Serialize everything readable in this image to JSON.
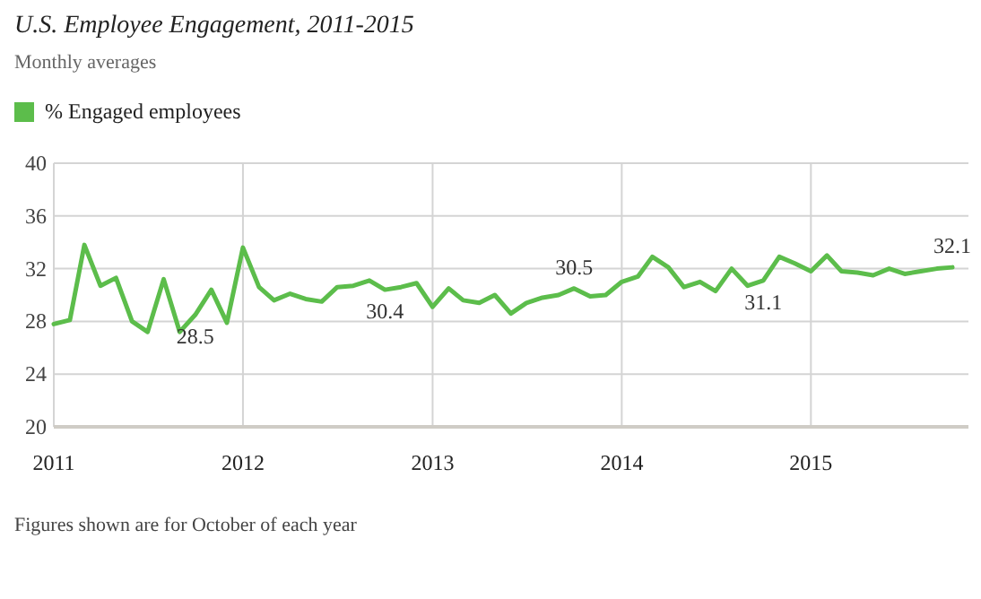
{
  "chart_data": {
    "type": "line",
    "title": "U.S. Employee Engagement, 2011-2015",
    "subtitle": "Monthly averages",
    "x": [
      "2011-01",
      "2011-02",
      "2011-03",
      "2011-04",
      "2011-05",
      "2011-06",
      "2011-07",
      "2011-08",
      "2011-09",
      "2011-10",
      "2011-11",
      "2011-12",
      "2012-01",
      "2012-02",
      "2012-03",
      "2012-04",
      "2012-05",
      "2012-06",
      "2012-07",
      "2012-08",
      "2012-09",
      "2012-10",
      "2012-11",
      "2012-12",
      "2013-01",
      "2013-02",
      "2013-03",
      "2013-04",
      "2013-05",
      "2013-06",
      "2013-07",
      "2013-08",
      "2013-09",
      "2013-10",
      "2013-11",
      "2013-12",
      "2014-01",
      "2014-02",
      "2014-03",
      "2014-04",
      "2014-05",
      "2014-06",
      "2014-07",
      "2014-08",
      "2014-09",
      "2014-10",
      "2014-11",
      "2014-12",
      "2015-01",
      "2015-02",
      "2015-03",
      "2015-04",
      "2015-05",
      "2015-06",
      "2015-07",
      "2015-08",
      "2015-09",
      "2015-10"
    ],
    "series": [
      {
        "name": "% Engaged employees",
        "color": "#5cbd4b",
        "values": [
          27.8,
          28.1,
          33.8,
          30.7,
          31.3,
          28.0,
          27.2,
          31.2,
          27.2,
          28.5,
          30.4,
          27.9,
          33.6,
          30.6,
          29.6,
          30.1,
          29.7,
          29.5,
          30.6,
          30.7,
          31.1,
          30.4,
          30.6,
          30.9,
          29.1,
          30.5,
          29.6,
          29.4,
          30.0,
          28.6,
          29.4,
          29.8,
          30.0,
          30.5,
          29.9,
          30.0,
          31.0,
          31.4,
          32.9,
          32.1,
          30.6,
          31.0,
          30.3,
          32.0,
          30.7,
          31.1,
          32.9,
          32.4,
          31.8,
          33.0,
          31.8,
          31.7,
          31.5,
          32.0,
          31.6,
          31.8,
          32.0,
          32.1
        ]
      }
    ],
    "xlim": [
      "2011-01",
      "2015-11"
    ],
    "xticks": [
      {
        "value": "2011-01",
        "label": "2011"
      },
      {
        "value": "2012-01",
        "label": "2012"
      },
      {
        "value": "2013-01",
        "label": "2013"
      },
      {
        "value": "2014-01",
        "label": "2014"
      },
      {
        "value": "2015-01",
        "label": "2015"
      }
    ],
    "ylim": [
      20,
      40
    ],
    "yticks": [
      20,
      24,
      28,
      32,
      36,
      40
    ],
    "grid": true,
    "legend": "top left",
    "marker": "none",
    "line_style": "solid",
    "annotations": [
      {
        "text": "28.5",
        "x": "2011-10",
        "y": 28.5
      },
      {
        "text": "30.4",
        "x": "2012-10",
        "y": 30.4
      },
      {
        "text": "30.5",
        "x": "2013-10",
        "y": 30.5
      },
      {
        "text": "31.1",
        "x": "2014-10",
        "y": 31.1
      },
      {
        "text": "32.1",
        "x": "2015-10",
        "y": 32.1
      },
      "Figures shown are for October of each year"
    ]
  }
}
